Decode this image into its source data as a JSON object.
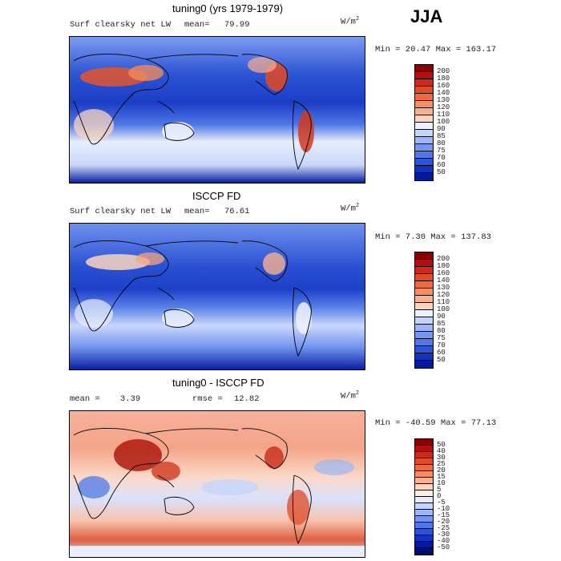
{
  "season": "JJA",
  "units_base": "W/m",
  "units_exp": "2",
  "panels": [
    {
      "title": "tuning0 (yrs 1979-1979)",
      "field_label": "Surf clearsky net LW",
      "stat1_label": "mean=",
      "stat1_value": "79.99",
      "minmax_text": "Min =  20.47 Max = 163.17"
    },
    {
      "title": "ISCCP FD",
      "field_label": "Surf clearsky net LW",
      "stat1_label": "mean=",
      "stat1_value": "76.61",
      "minmax_text": "Min =   7.30 Max = 137.83"
    },
    {
      "title": "tuning0 - ISCCP FD",
      "field_label": "",
      "stat1_label": "mean =",
      "stat1_value": "3.39",
      "stat2_label": "rmse =",
      "stat2_value": "12.82",
      "minmax_text": "Min = -40.59 Max =  77.13"
    }
  ],
  "chart_data": [
    {
      "type": "heatmap",
      "title": "tuning0 (yrs 1979-1979)",
      "variable": "Surf clearsky net LW",
      "units": "W/m2",
      "mean": 79.99,
      "min": 20.47,
      "max": 163.17,
      "colorbar_levels": [
        "200",
        "180",
        "160",
        "140",
        "130",
        "120",
        "110",
        "100",
        "90",
        "85",
        "80",
        "75",
        "70",
        "60",
        "50"
      ],
      "colorbar_colors": [
        "#8b0000",
        "#b01010",
        "#cc2a1a",
        "#e04a24",
        "#ee6a3c",
        "#f58e62",
        "#f9b08e",
        "#fbd4be",
        "#eef2ff",
        "#c4d4fb",
        "#9cb6f6",
        "#7597f0",
        "#4f78e6",
        "#2a56d6",
        "#1034c0",
        "#021a9c"
      ]
    },
    {
      "type": "heatmap",
      "title": "ISCCP FD",
      "variable": "Surf clearsky net LW",
      "units": "W/m2",
      "mean": 76.61,
      "min": 7.3,
      "max": 137.83,
      "colorbar_levels": [
        "200",
        "180",
        "160",
        "140",
        "130",
        "120",
        "110",
        "100",
        "90",
        "85",
        "80",
        "75",
        "70",
        "60",
        "50"
      ],
      "colorbar_colors": [
        "#8b0000",
        "#b01010",
        "#cc2a1a",
        "#e04a24",
        "#ee6a3c",
        "#f58e62",
        "#f9b08e",
        "#fbd4be",
        "#eef2ff",
        "#c4d4fb",
        "#9cb6f6",
        "#7597f0",
        "#4f78e6",
        "#2a56d6",
        "#1034c0",
        "#021a9c"
      ]
    },
    {
      "type": "heatmap",
      "title": "tuning0 - ISCCP FD",
      "units": "W/m2",
      "mean": 3.39,
      "rmse": 12.82,
      "min": -40.59,
      "max": 77.13,
      "colorbar_levels": [
        "50",
        "40",
        "30",
        "25",
        "20",
        "15",
        "10",
        "5",
        "0",
        "-5",
        "-10",
        "-15",
        "-20",
        "-25",
        "-30",
        "-40",
        "-50"
      ],
      "colorbar_colors": [
        "#8b0000",
        "#b01010",
        "#cc2a1a",
        "#e04a24",
        "#ee6a3c",
        "#f58e62",
        "#f9b08e",
        "#fbd4be",
        "#fdeee6",
        "#e6ecfd",
        "#c4d4fb",
        "#9cb6f6",
        "#7597f0",
        "#4f78e6",
        "#2a56d6",
        "#1034c0",
        "#021a9c",
        "#010c70"
      ]
    }
  ]
}
